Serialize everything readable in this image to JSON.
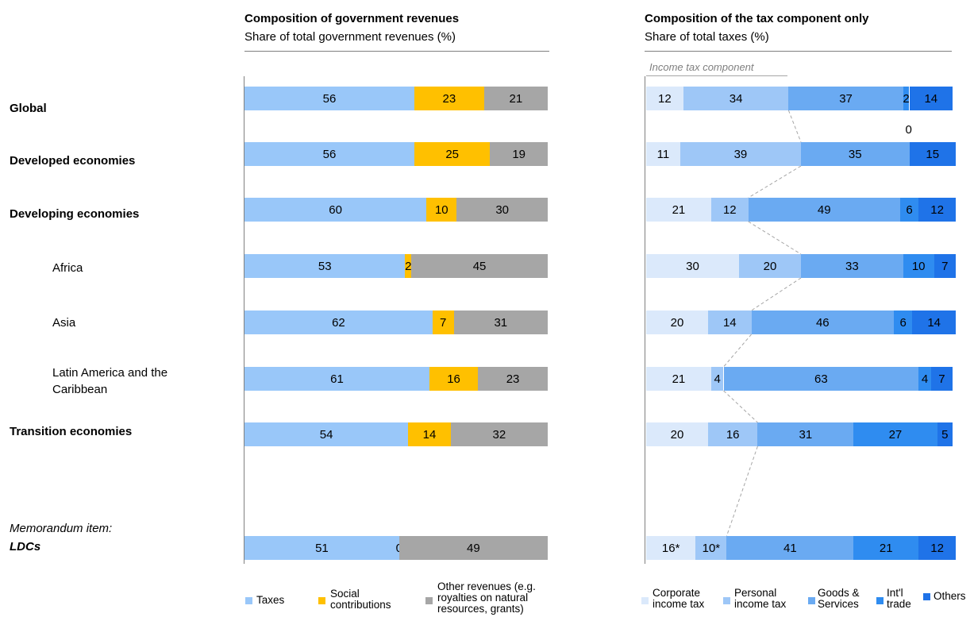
{
  "rows": [
    {
      "label": "Global",
      "style": "bold"
    },
    {
      "label": "Developed economies",
      "style": "bold"
    },
    {
      "label": "Developing economies",
      "style": "bold"
    },
    {
      "label": "Africa",
      "style": "indent"
    },
    {
      "label": "Asia",
      "style": "indent"
    },
    {
      "label": "Latin America and the Caribbean",
      "style": "indent"
    },
    {
      "label": "Transition economies",
      "style": "bold"
    },
    {
      "label": "LDCs",
      "style": "memo"
    }
  ],
  "memo_label": "Memorandum item:",
  "chart_data": [
    {
      "type": "bar",
      "orientation": "horizontal",
      "stacked": true,
      "title": "Composition of government revenues",
      "subtitle": "Share of total government  revenues (%)",
      "categories": [
        "Global",
        "Developed economies",
        "Developing economies",
        "Africa",
        "Asia",
        "Latin America and the Caribbean",
        "Transition economies",
        "LDCs"
      ],
      "series": [
        {
          "name": "Taxes",
          "color": "#99c7f9",
          "values": [
            56,
            56,
            60,
            53,
            62,
            61,
            54,
            51
          ],
          "labels": [
            "56",
            "56",
            "60",
            "53",
            "62",
            "61",
            "54",
            "51"
          ]
        },
        {
          "name": "Social contributions",
          "color": "#ffc000",
          "values": [
            23,
            25,
            10,
            2,
            7,
            16,
            14,
            0
          ],
          "labels": [
            "23",
            "25",
            "10",
            "2",
            "7",
            "16",
            "14",
            "0"
          ]
        },
        {
          "name": "Other revenues (e.g. royalties on natural resources, grants)",
          "color": "#a6a6a6",
          "values": [
            21,
            19,
            30,
            45,
            31,
            23,
            32,
            49
          ],
          "labels": [
            "21",
            "19",
            "30",
            "45",
            "31",
            "23",
            "32",
            "49"
          ]
        }
      ],
      "xlim": [
        0,
        100
      ],
      "legend": "bottom"
    },
    {
      "type": "bar",
      "orientation": "horizontal",
      "stacked": true,
      "title": "Composition of the tax component only",
      "subtitle": "Share of total taxes (%)",
      "annotation": "Income tax component",
      "categories": [
        "Global",
        "Developed economies",
        "Developing economies",
        "Africa",
        "Asia",
        "Latin America and the Caribbean",
        "Transition economies",
        "LDCs"
      ],
      "series": [
        {
          "name": "Corporate income tax",
          "color": "#dbe9fb",
          "values": [
            12,
            11,
            21,
            30,
            20,
            21,
            20,
            16
          ],
          "labels": [
            "12",
            "11",
            "21",
            "30",
            "20",
            "21",
            "20",
            "16*"
          ]
        },
        {
          "name": "Personal income tax",
          "color": "#9ec7f7",
          "values": [
            34,
            39,
            12,
            20,
            14,
            4,
            16,
            10
          ],
          "labels": [
            "34",
            "39",
            "12",
            "20",
            "14",
            "4",
            "16",
            "10*"
          ]
        },
        {
          "name": "Goods & Services",
          "color": "#6aaaf2",
          "values": [
            37,
            35,
            49,
            33,
            46,
            63,
            31,
            41
          ],
          "labels": [
            "37",
            "35",
            "49",
            "33",
            "46",
            "63",
            "31",
            "41"
          ]
        },
        {
          "name": "Int'l trade",
          "color": "#2f8cf0",
          "values": [
            2,
            0,
            6,
            10,
            6,
            4,
            27,
            21
          ],
          "labels": [
            "2",
            "0",
            "6",
            "10",
            "6",
            "4",
            "27",
            "21"
          ]
        },
        {
          "name": "Others",
          "color": "#1f73e8",
          "values": [
            14,
            15,
            12,
            7,
            14,
            7,
            5,
            12
          ],
          "labels": [
            "14",
            "15",
            "12",
            "7",
            "14",
            "7",
            "5",
            "12"
          ]
        }
      ],
      "xlim": [
        0,
        100
      ],
      "legend": "bottom"
    }
  ]
}
